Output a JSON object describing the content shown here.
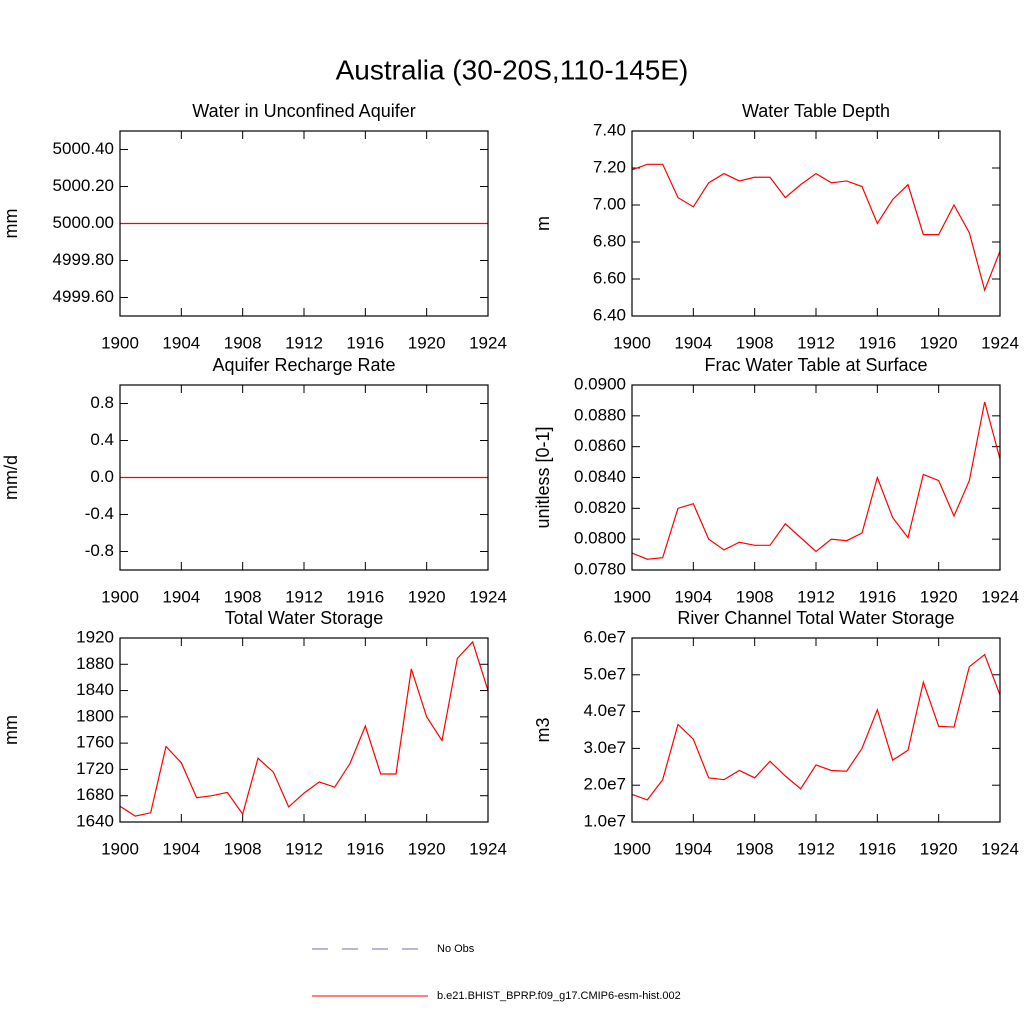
{
  "title": "Australia (30-20S,110-145E)",
  "chart_data": [
    {
      "type": "line",
      "title": "Water in Unconfined Aquifer",
      "y_label": "mm",
      "x": [
        1900,
        1901,
        1902,
        1903,
        1904,
        1905,
        1906,
        1907,
        1908,
        1909,
        1910,
        1911,
        1912,
        1913,
        1914,
        1915,
        1916,
        1917,
        1918,
        1919,
        1920,
        1921,
        1922,
        1923,
        1924
      ],
      "xlim": [
        1900,
        1924
      ],
      "xticks": [
        1900,
        1904,
        1908,
        1912,
        1916,
        1920,
        1924
      ],
      "ylim": [
        4999.5,
        5000.5
      ],
      "yticks": [
        {
          "value": 4999.6,
          "label": "4999.60"
        },
        {
          "value": 4999.8,
          "label": "4999.80"
        },
        {
          "value": 5000,
          "label": "5000.00"
        },
        {
          "value": 5000.2,
          "label": "5000.20"
        },
        {
          "value": 5000.4,
          "label": "5000.40"
        }
      ],
      "series": [
        {
          "color": "#ff0000",
          "values": [
            5000,
            5000,
            5000,
            5000,
            5000,
            5000,
            5000,
            5000,
            5000,
            5000,
            5000,
            5000,
            5000,
            5000,
            5000,
            5000,
            5000,
            5000,
            5000,
            5000,
            5000,
            5000,
            5000,
            5000,
            5000
          ]
        }
      ]
    },
    {
      "type": "line",
      "title": "Water Table Depth",
      "y_label": "m",
      "x": [
        1900,
        1901,
        1902,
        1903,
        1904,
        1905,
        1906,
        1907,
        1908,
        1909,
        1910,
        1911,
        1912,
        1913,
        1914,
        1915,
        1916,
        1917,
        1918,
        1919,
        1920,
        1921,
        1922,
        1923,
        1924
      ],
      "xlim": [
        1900,
        1924
      ],
      "xticks": [
        1900,
        1904,
        1908,
        1912,
        1916,
        1920,
        1924
      ],
      "ylim": [
        6.4,
        7.4
      ],
      "yticks": [
        {
          "value": 6.4,
          "label": "6.40"
        },
        {
          "value": 6.6,
          "label": "6.60"
        },
        {
          "value": 6.8,
          "label": "6.80"
        },
        {
          "value": 7.0,
          "label": "7.00"
        },
        {
          "value": 7.2,
          "label": "7.20"
        },
        {
          "value": 7.4,
          "label": "7.40"
        }
      ],
      "series": [
        {
          "color": "#ff0000",
          "values": [
            7.19,
            7.22,
            7.22,
            7.04,
            6.99,
            7.12,
            7.17,
            7.13,
            7.15,
            7.15,
            7.04,
            7.11,
            7.17,
            7.12,
            7.13,
            7.1,
            6.9,
            7.03,
            7.11,
            6.84,
            6.84,
            7.0,
            6.85,
            6.54,
            6.75
          ]
        }
      ]
    },
    {
      "type": "line",
      "title": "Aquifer Recharge Rate",
      "y_label": "mm/d",
      "x": [
        1900,
        1901,
        1902,
        1903,
        1904,
        1905,
        1906,
        1907,
        1908,
        1909,
        1910,
        1911,
        1912,
        1913,
        1914,
        1915,
        1916,
        1917,
        1918,
        1919,
        1920,
        1921,
        1922,
        1923,
        1924
      ],
      "xlim": [
        1900,
        1924
      ],
      "xticks": [
        1900,
        1904,
        1908,
        1912,
        1916,
        1920,
        1924
      ],
      "ylim": [
        -1,
        1
      ],
      "yticks": [
        -0.8,
        -0.4,
        {
          "value": 0,
          "label": "0.0"
        },
        0.4,
        0.8
      ],
      "series": [
        {
          "color": "#ff0000",
          "values": [
            0,
            0,
            0,
            0,
            0,
            0,
            0,
            0,
            0,
            0,
            0,
            0,
            0,
            0,
            0,
            0,
            0,
            0,
            0,
            0,
            0,
            0,
            0,
            0,
            0
          ]
        }
      ]
    },
    {
      "type": "line",
      "title": "Frac Water Table at Surface",
      "y_label": "unitless [0-1]",
      "x": [
        1900,
        1901,
        1902,
        1903,
        1904,
        1905,
        1906,
        1907,
        1908,
        1909,
        1910,
        1911,
        1912,
        1913,
        1914,
        1915,
        1916,
        1917,
        1918,
        1919,
        1920,
        1921,
        1922,
        1923,
        1924
      ],
      "xlim": [
        1900,
        1924
      ],
      "xticks": [
        1900,
        1904,
        1908,
        1912,
        1916,
        1920,
        1924
      ],
      "ylim": [
        0.078,
        0.09
      ],
      "yticks": [
        {
          "value": 0.078,
          "label": "0.0780"
        },
        {
          "value": 0.08,
          "label": "0.0800"
        },
        {
          "value": 0.082,
          "label": "0.0820"
        },
        {
          "value": 0.084,
          "label": "0.0840"
        },
        {
          "value": 0.086,
          "label": "0.0860"
        },
        {
          "value": 0.088,
          "label": "0.0880"
        },
        {
          "value": 0.09,
          "label": "0.0900"
        }
      ],
      "series": [
        {
          "color": "#ff0000",
          "values": [
            0.0791,
            0.0787,
            0.0788,
            0.082,
            0.0823,
            0.08,
            0.0793,
            0.0798,
            0.0796,
            0.0796,
            0.081,
            0.0801,
            0.0792,
            0.08,
            0.0799,
            0.0804,
            0.084,
            0.0814,
            0.0801,
            0.0842,
            0.0838,
            0.0815,
            0.0838,
            0.0889,
            0.0852
          ]
        }
      ]
    },
    {
      "type": "line",
      "title": "Total Water Storage",
      "y_label": "mm",
      "x": [
        1900,
        1901,
        1902,
        1903,
        1904,
        1905,
        1906,
        1907,
        1908,
        1909,
        1910,
        1911,
        1912,
        1913,
        1914,
        1915,
        1916,
        1917,
        1918,
        1919,
        1920,
        1921,
        1922,
        1923,
        1924
      ],
      "xlim": [
        1900,
        1924
      ],
      "xticks": [
        1900,
        1904,
        1908,
        1912,
        1916,
        1920,
        1924
      ],
      "ylim": [
        1640,
        1920
      ],
      "yticks": [
        1640,
        1680,
        1720,
        1760,
        1800,
        1840,
        1880,
        1920
      ],
      "series": [
        {
          "color": "#ff0000",
          "values": [
            1664,
            1649,
            1654,
            1755,
            1730,
            1677,
            1680,
            1685,
            1652,
            1737,
            1716,
            1663,
            1684,
            1701,
            1693,
            1729,
            1786,
            1713,
            1713,
            1873,
            1800,
            1764,
            1889,
            1914,
            1840
          ]
        }
      ]
    },
    {
      "type": "line",
      "title": "River Channel Total Water Storage",
      "y_label": "m3",
      "x": [
        1900,
        1901,
        1902,
        1903,
        1904,
        1905,
        1906,
        1907,
        1908,
        1909,
        1910,
        1911,
        1912,
        1913,
        1914,
        1915,
        1916,
        1917,
        1918,
        1919,
        1920,
        1921,
        1922,
        1923,
        1924
      ],
      "xlim": [
        1900,
        1924
      ],
      "xticks": [
        1900,
        1904,
        1908,
        1912,
        1916,
        1920,
        1924
      ],
      "ylim": [
        10000000,
        60000000
      ],
      "yticks": [
        {
          "value": 10000000,
          "label": "1.0e7"
        },
        {
          "value": 20000000,
          "label": "2.0e7"
        },
        {
          "value": 30000000,
          "label": "3.0e7"
        },
        {
          "value": 40000000,
          "label": "4.0e7"
        },
        {
          "value": 50000000,
          "label": "5.0e7"
        },
        {
          "value": 60000000,
          "label": "6.0e7"
        }
      ],
      "series": [
        {
          "color": "#ff0000",
          "values": [
            17500000,
            16000000,
            21500000,
            36500000,
            32500000,
            22000000,
            21500000,
            24000000,
            22000000,
            26500000,
            22500000,
            19000000,
            25500000,
            24000000,
            23800000,
            30000000,
            40500000,
            26800000,
            29500000,
            48000000,
            36000000,
            35800000,
            52200000,
            55500000,
            44500000
          ]
        }
      ]
    }
  ],
  "legend": [
    {
      "name": "No Obs",
      "color": "#6f6fb0",
      "dashed": true
    },
    {
      "name": "b.e21.BHIST_BPRP.f09_g17.CMIP6-esm-hist.002",
      "color": "#ff0000",
      "dashed": false
    }
  ]
}
